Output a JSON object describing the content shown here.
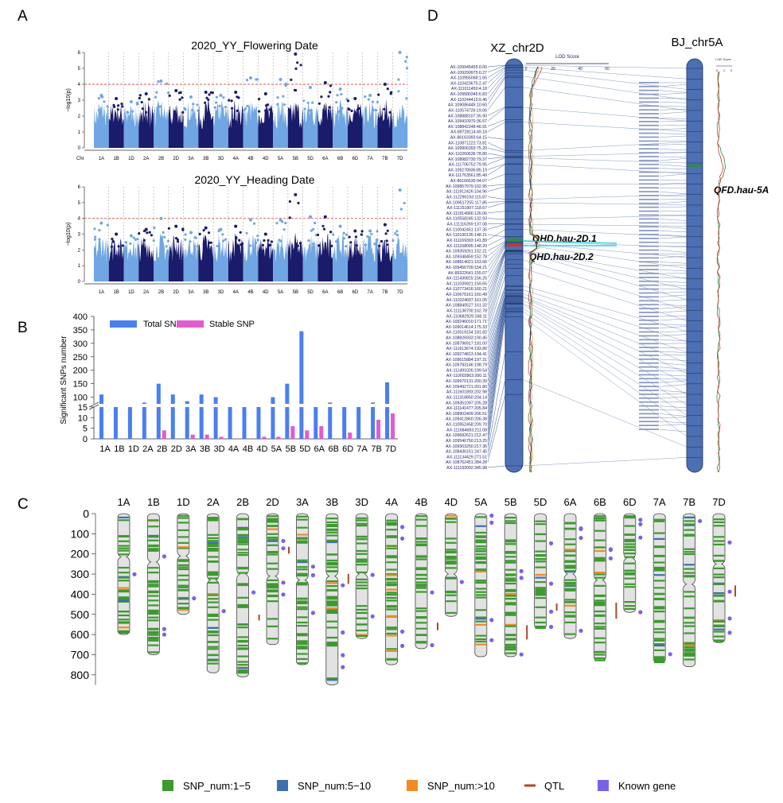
{
  "panel_labels": {
    "a": "A",
    "b": "B",
    "c": "C",
    "d": "D"
  },
  "colors": {
    "dark": "#1b1b6b",
    "light": "#6fa6e3",
    "threshold": "#d9534f",
    "total": "#4a7ff0",
    "stable": "#e05ccf",
    "snp1_5": "#3c9a2e",
    "snp5_10": "#3f6fae",
    "snp10": "#f08a24",
    "qtl": "#b0442a",
    "known": "#7b61e8",
    "chrom_fill": "#e2e2e2",
    "linkage": "#3d5ea0",
    "cyan": "#33d0e0"
  },
  "manhattan": {
    "chromosomes": [
      "1A",
      "1B",
      "1D",
      "2A",
      "2B",
      "2D",
      "3A",
      "3B",
      "3D",
      "4A",
      "4B",
      "4D",
      "5A",
      "5B",
      "5D",
      "6A",
      "6B",
      "6D",
      "7A",
      "7B",
      "7D"
    ],
    "ylabel": "−log10(p)",
    "yticks": [
      0,
      1,
      2,
      3,
      4,
      5,
      6
    ],
    "threshold": 4,
    "plots": [
      {
        "title": "2020_YY_Flowering Date",
        "x_first": "Chr",
        "peaks": [
          3.3,
          3.1,
          2.9,
          3.4,
          4.2,
          3.6,
          3.2,
          3.5,
          3.3,
          3.5,
          4.4,
          3.4,
          4.3,
          5.9,
          3.8,
          4.1,
          3.7,
          3.1,
          3.3,
          4.0,
          6.0
        ]
      },
      {
        "title": "2020_YY_Heading Date",
        "x_first": "",
        "peaks": [
          3.7,
          3.0,
          2.9,
          3.3,
          4.0,
          3.5,
          3.1,
          3.4,
          3.3,
          3.5,
          3.9,
          3.0,
          3.9,
          5.5,
          4.1,
          4.1,
          3.5,
          3.2,
          3.2,
          3.6,
          5.8
        ]
      }
    ]
  },
  "chart_data": [
    {
      "type": "bar",
      "ylabel": "Significant SNPs number",
      "categories": [
        "1A",
        "1B",
        "1D",
        "2A",
        "2B",
        "2D",
        "3A",
        "3B",
        "3D",
        "4A",
        "4B",
        "4D",
        "5A",
        "5B",
        "5D",
        "6A",
        "6B",
        "6D",
        "7A",
        "7B",
        "7D"
      ],
      "series": [
        {
          "name": "Total SNP",
          "values": [
            110,
            65,
            70,
            80,
            150,
            110,
            85,
            110,
            100,
            65,
            65,
            65,
            100,
            150,
            345,
            55,
            80,
            65,
            55,
            80,
            155
          ]
        },
        {
          "name": "Stable SNP",
          "values": [
            0,
            0,
            0,
            0,
            4,
            0,
            2,
            2,
            1,
            0,
            0,
            1,
            1,
            6,
            4,
            6,
            0,
            3,
            0,
            9,
            12
          ]
        }
      ],
      "lower_yticks": [
        0,
        5,
        10,
        15
      ],
      "upper_yticks": [
        100,
        150,
        200,
        250,
        300,
        350,
        400
      ]
    }
  ],
  "chrom_map": {
    "names": [
      "1A",
      "1B",
      "1D",
      "2A",
      "2B",
      "2D",
      "3A",
      "3B",
      "3D",
      "4A",
      "4B",
      "4D",
      "5A",
      "5B",
      "5D",
      "6A",
      "6B",
      "6D",
      "7A",
      "7B",
      "7D"
    ],
    "lengths": [
      600,
      700,
      500,
      790,
      810,
      650,
      750,
      850,
      620,
      750,
      670,
      510,
      710,
      710,
      570,
      620,
      730,
      490,
      740,
      760,
      640
    ],
    "centromeres": [
      215,
      240,
      210,
      330,
      300,
      310,
      330,
      310,
      300,
      0,
      0,
      300,
      0,
      0,
      0,
      300,
      330,
      220,
      0,
      350,
      250
    ],
    "yticks": [
      0,
      100,
      200,
      300,
      400,
      500,
      600,
      700,
      800
    ],
    "legend": [
      "SNP_num:1−5",
      "SNP_num:5−10",
      "SNP_num:>10",
      "QTL",
      "Known gene"
    ]
  },
  "linkage": {
    "left_title": "XZ_chr2D",
    "right_title": "BJ_chr5A",
    "lod_label": "LOD Score",
    "lod_ticks": [
      "0",
      "20",
      "40",
      "60"
    ],
    "right_lod_label": "LOD Score",
    "right_lod_ticks": [
      "0",
      "1",
      "2"
    ],
    "qtl_labels": [
      "QHD.hau-2D.1",
      "QHD.hau-2D.2",
      "QFD.hau-5A"
    ],
    "markers": [
      "AX-109945455:0.00",
      "AX-109299975:0.27",
      "AX-110955068:1.65",
      "AX-110423675:2.47",
      "AX-111011450:4.18",
      "AX-109580345:6.83",
      "AX-110244413:9.46",
      "AX-109086445:10.60",
      "AX-110574726:19.06",
      "AX-108888107:35.90",
      "AX-109410970:36.57",
      "AX-108842248:46.91",
      "AX-89728114:49.18",
      "AX-86163393:64.15",
      "AX-110871222:73.81",
      "AX-109906393:75.20",
      "AX-110260636:78.80",
      "AX-108982730:79.37",
      "AX-111706752:79.95",
      "AX-109278936:85.19",
      "AX-111763561:85.49",
      "AX-86166630:94.07",
      "AX-109857979:102.95",
      "AX-111912426:104.96",
      "AX-112290193:115.87",
      "AX-109517255:117.85",
      "AX-111151907:118.67",
      "AX-111914966:126.06",
      "AX-110558245:132.93",
      "AX-111116269:137.08",
      "AX-110042451:137.35",
      "AX-110190135:148.21",
      "AX-111169393:141.89",
      "AX-111158095:148.20",
      "AX-109359261:152.21",
      "AX-109348459:152.78",
      "AX-108814021:153.66",
      "AX-109456709:154.21",
      "AX-89322641:155.07",
      "AX-111430815:156.25",
      "AX-111039921:159.65",
      "AX-110773416:160.21",
      "AX-110675161:160.49",
      "AX-111024697:161.05",
      "AX-108840527:161.32",
      "AX-111138700:162.78",
      "AX-110682929:168.11",
      "AX-109246010:171.71",
      "AX-109014614:175.33",
      "AX-110519154:181.82",
      "AX-108826933:190.45",
      "AX-108796917:191.00",
      "AX-111613674:193.86",
      "AX-109274813:194.41",
      "AX-109615884:197.31",
      "AX-109783146:198.79",
      "AX-111491026:199.54",
      "AX-110002863:200.11",
      "AX-109970131:200.39",
      "AX-109492721:201.80",
      "AX-111601893:202.98",
      "AX-111318850:204.14",
      "AX-109351097:205.28",
      "AX-111141477:205.84",
      "AX-108902409:206.51",
      "AX-109412860:206.38",
      "AX-110952458:209.70",
      "AX-111684683:211.08",
      "AX-109682621:212.47",
      "AX-109546750:213.25",
      "AX-109363250:217.36",
      "AX-108436151:247.45",
      "AX-111134429:271.51",
      "AX-108762451:284.28",
      "AX-111193092:345.98"
    ]
  }
}
